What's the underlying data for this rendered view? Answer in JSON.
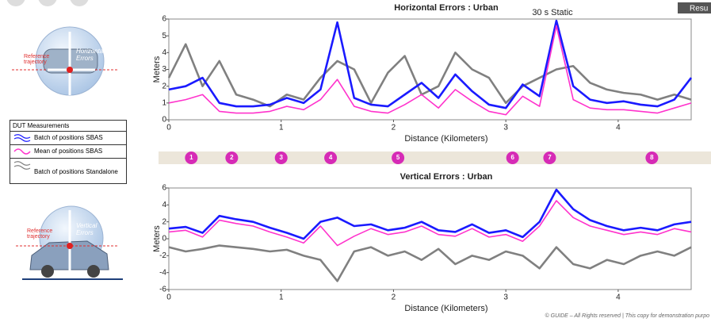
{
  "chart_data": [
    {
      "type": "line",
      "title": "Horizontal Errors : Urban",
      "ylabel": "Meters",
      "xlabel": "Distance (Kilometers)",
      "annotation": "30 s Static",
      "x": [
        0,
        0.15,
        0.3,
        0.45,
        0.6,
        0.75,
        0.9,
        1.05,
        1.2,
        1.35,
        1.5,
        1.65,
        1.8,
        1.95,
        2.1,
        2.25,
        2.4,
        2.55,
        2.7,
        2.85,
        3.0,
        3.15,
        3.3,
        3.45,
        3.6,
        3.75,
        3.9,
        4.05,
        4.2,
        4.35,
        4.5,
        4.65
      ],
      "xlim": [
        0,
        4.65
      ],
      "xticks": [
        0,
        1,
        2,
        3,
        4
      ],
      "ylim": [
        0,
        6
      ],
      "yticks": [
        0,
        1,
        2,
        3,
        4,
        5,
        6
      ],
      "series": [
        {
          "name": "Batch of positions Standalone",
          "color": "#808080",
          "values": [
            2.5,
            4.5,
            2.0,
            3.5,
            1.5,
            1.2,
            0.8,
            1.5,
            1.2,
            2.5,
            3.5,
            3.0,
            1.0,
            2.8,
            3.8,
            1.5,
            2.0,
            4.0,
            3.0,
            2.5,
            1.0,
            2.0,
            2.5,
            3.0,
            3.2,
            2.2,
            1.8,
            1.6,
            1.5,
            1.2,
            1.5,
            1.2
          ]
        },
        {
          "name": "Batch of positions SBAS",
          "color": "#1a1aff",
          "values": [
            1.8,
            2.0,
            2.5,
            1.0,
            0.8,
            0.8,
            0.9,
            1.3,
            1.0,
            1.8,
            5.8,
            1.3,
            0.9,
            0.8,
            1.5,
            2.2,
            1.3,
            2.7,
            1.7,
            0.9,
            0.7,
            2.1,
            1.4,
            5.9,
            2.0,
            1.2,
            1.0,
            1.1,
            0.9,
            0.8,
            1.2,
            2.5
          ]
        },
        {
          "name": "Mean of positions SBAS",
          "color": "#ff33cc",
          "values": [
            1.0,
            1.2,
            1.5,
            0.5,
            0.4,
            0.4,
            0.5,
            0.8,
            0.6,
            1.2,
            2.4,
            0.8,
            0.5,
            0.4,
            0.9,
            1.5,
            0.7,
            1.8,
            1.1,
            0.5,
            0.3,
            1.4,
            0.8,
            5.6,
            1.2,
            0.7,
            0.6,
            0.6,
            0.5,
            0.4,
            0.7,
            1.0
          ]
        }
      ]
    },
    {
      "type": "line",
      "title": "Vertical Errors : Urban",
      "ylabel": "Meters",
      "xlabel": "Distance (Kilometers)",
      "x": [
        0,
        0.15,
        0.3,
        0.45,
        0.6,
        0.75,
        0.9,
        1.05,
        1.2,
        1.35,
        1.5,
        1.65,
        1.8,
        1.95,
        2.1,
        2.25,
        2.4,
        2.55,
        2.7,
        2.85,
        3.0,
        3.15,
        3.3,
        3.45,
        3.6,
        3.75,
        3.9,
        4.05,
        4.2,
        4.35,
        4.5,
        4.65
      ],
      "xlim": [
        0,
        4.65
      ],
      "xticks": [
        0,
        1,
        2,
        3,
        4
      ],
      "ylim": [
        -6,
        6
      ],
      "yticks": [
        -6,
        -4,
        -2,
        0,
        2,
        4,
        6
      ],
      "series": [
        {
          "color": "#808080",
          "values": [
            -1.0,
            -1.5,
            -1.2,
            -0.8,
            -1.0,
            -1.2,
            -1.5,
            -1.3,
            -2.0,
            -2.5,
            -5.0,
            -1.5,
            -1.0,
            -2.0,
            -1.5,
            -2.5,
            -1.2,
            -3.0,
            -2.0,
            -2.5,
            -1.5,
            -2.0,
            -3.5,
            -1.0,
            -3.0,
            -3.5,
            -2.5,
            -3.0,
            -2.0,
            -1.5,
            -2.0,
            -1.0
          ]
        },
        {
          "color": "#1a1aff",
          "values": [
            1.2,
            1.4,
            0.7,
            2.7,
            2.3,
            2.0,
            1.3,
            0.7,
            0.0,
            2.0,
            2.5,
            1.5,
            1.7,
            1.0,
            1.3,
            2.0,
            1.0,
            0.8,
            1.7,
            0.7,
            1.0,
            0.2,
            2.0,
            5.8,
            3.5,
            2.2,
            1.5,
            1.0,
            1.3,
            1.0,
            1.7,
            2.0
          ]
        },
        {
          "color": "#ff33cc",
          "values": [
            0.8,
            1.0,
            0.2,
            2.2,
            1.8,
            1.5,
            0.8,
            0.2,
            -0.5,
            1.5,
            -0.8,
            0.3,
            1.2,
            0.5,
            0.8,
            1.5,
            0.5,
            0.3,
            1.2,
            0.2,
            0.5,
            -0.3,
            1.5,
            4.5,
            2.5,
            1.5,
            1.0,
            0.5,
            0.8,
            0.5,
            1.2,
            0.8
          ]
        }
      ]
    }
  ],
  "legend_title": "DUT Measurements",
  "markers": [
    {
      "label": "1",
      "x": 0.2
    },
    {
      "label": "2",
      "x": 0.56
    },
    {
      "label": "3",
      "x": 1.0
    },
    {
      "label": "4",
      "x": 1.44
    },
    {
      "label": "5",
      "x": 2.04
    },
    {
      "label": "6",
      "x": 3.06
    },
    {
      "label": "7",
      "x": 3.39
    },
    {
      "label": "8",
      "x": 4.3
    }
  ],
  "diagrams": {
    "horizontal": {
      "reference": "Reference trajectory",
      "errors": "Horizontal Errors"
    },
    "vertical": {
      "reference": "Reference trajectory",
      "errors": "Vertical Errors"
    }
  },
  "button": "Resu",
  "footer": "© GUIDE – All Rights reserved | This copy for demonstration purpo"
}
